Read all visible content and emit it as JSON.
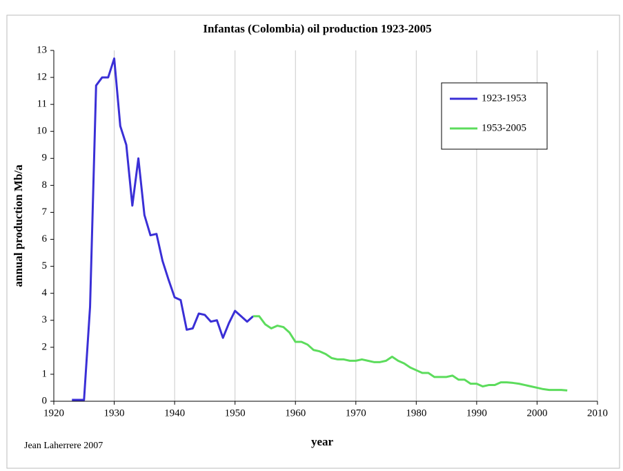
{
  "chart_data": {
    "type": "line",
    "title": "Infantas (Colombia) oil production 1923-2005",
    "x_label": "year",
    "y_label": "annual production Mb/a",
    "annotation": "Jean Laherrere 2007",
    "xlim": [
      1920,
      2010
    ],
    "xticks": [
      1920,
      1930,
      1940,
      1950,
      1960,
      1970,
      1980,
      1990,
      2000,
      2010
    ],
    "ylim": [
      0,
      13
    ],
    "yticks": [
      0,
      1,
      2,
      3,
      4,
      5,
      6,
      7,
      8,
      9,
      10,
      11,
      12,
      13
    ],
    "grid": "x",
    "legend": "upper right",
    "series": [
      {
        "name": "1923-1953",
        "color": "#3a2fd6",
        "x": [
          1923,
          1924,
          1925,
          1926,
          1927,
          1928,
          1929,
          1930,
          1931,
          1932,
          1933,
          1934,
          1935,
          1936,
          1937,
          1938,
          1939,
          1940,
          1941,
          1942,
          1943,
          1944,
          1945,
          1946,
          1947,
          1948,
          1949,
          1950,
          1951,
          1952,
          1953
        ],
        "values": [
          0.05,
          0.05,
          0.05,
          3.5,
          11.7,
          12.0,
          12.0,
          12.7,
          10.2,
          9.5,
          7.25,
          9.0,
          6.9,
          6.15,
          6.2,
          5.2,
          4.5,
          3.85,
          3.75,
          2.65,
          2.7,
          3.25,
          3.2,
          2.95,
          3.0,
          2.35,
          2.9,
          3.35,
          3.15,
          2.95,
          3.15
        ]
      },
      {
        "name": "1953-2005",
        "color": "#5cdc5c",
        "x": [
          1953,
          1954,
          1955,
          1956,
          1957,
          1958,
          1959,
          1960,
          1961,
          1962,
          1963,
          1964,
          1965,
          1966,
          1967,
          1968,
          1969,
          1970,
          1971,
          1972,
          1973,
          1974,
          1975,
          1976,
          1977,
          1978,
          1979,
          1980,
          1981,
          1982,
          1983,
          1984,
          1985,
          1986,
          1987,
          1988,
          1989,
          1990,
          1991,
          1992,
          1993,
          1994,
          1995,
          1996,
          1997,
          1998,
          1999,
          2000,
          2001,
          2002,
          2003,
          2004,
          2005
        ],
        "values": [
          3.15,
          3.15,
          2.85,
          2.7,
          2.8,
          2.75,
          2.55,
          2.2,
          2.2,
          2.1,
          1.9,
          1.85,
          1.75,
          1.6,
          1.55,
          1.55,
          1.5,
          1.5,
          1.55,
          1.5,
          1.45,
          1.45,
          1.5,
          1.65,
          1.5,
          1.4,
          1.25,
          1.15,
          1.05,
          1.05,
          0.9,
          0.9,
          0.9,
          0.95,
          0.8,
          0.8,
          0.65,
          0.65,
          0.55,
          0.6,
          0.6,
          0.7,
          0.7,
          0.68,
          0.65,
          0.6,
          0.55,
          0.5,
          0.45,
          0.42,
          0.42,
          0.42,
          0.4
        ]
      }
    ]
  }
}
